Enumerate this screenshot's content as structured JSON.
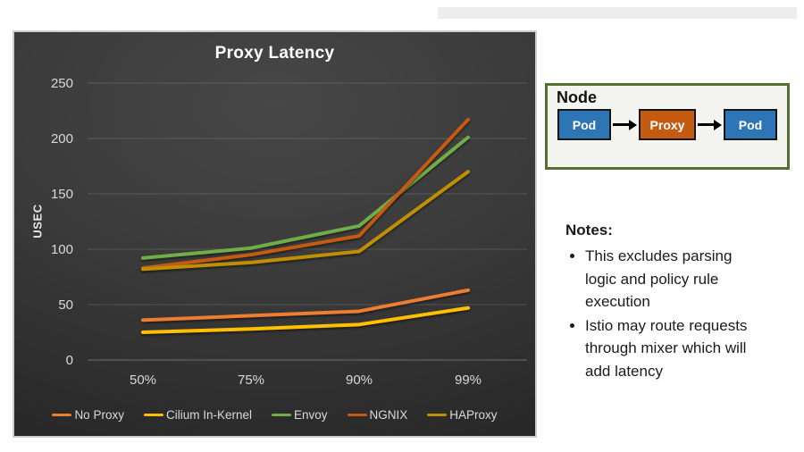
{
  "chart_data": {
    "type": "line",
    "title": "Proxy Latency",
    "ylabel": "USEC",
    "xlabel": "",
    "categories": [
      "50%",
      "75%",
      "90%",
      "99%"
    ],
    "series": [
      {
        "name": "No Proxy",
        "color": "#ED7D31",
        "values": [
          36,
          40,
          44,
          63
        ]
      },
      {
        "name": "Cilium In-Kernel",
        "color": "#FFC000",
        "values": [
          25,
          28,
          32,
          47
        ]
      },
      {
        "name": "Envoy",
        "color": "#70AD47",
        "values": [
          92,
          101,
          121,
          201
        ]
      },
      {
        "name": "NGNIX",
        "color": "#C55A11",
        "values": [
          83,
          95,
          112,
          217
        ]
      },
      {
        "name": "HAProxy",
        "color": "#BF8F00",
        "values": [
          82,
          88,
          98,
          170
        ]
      }
    ],
    "ylim": [
      0,
      250
    ],
    "yticks": [
      0,
      50,
      100,
      150,
      200,
      250
    ],
    "grid": true,
    "legend_position": "bottom",
    "panel_background": "#3a3a3a",
    "tick_text_color": "#d9d9d9"
  },
  "node_diagram": {
    "title": "Node",
    "border_color": "#566F31",
    "boxes": [
      {
        "label": "Pod",
        "color": "#2E75B6"
      },
      {
        "label": "Proxy",
        "color": "#C55A11"
      },
      {
        "label": "Pod",
        "color": "#2E75B6"
      }
    ]
  },
  "notes": {
    "heading": "Notes:",
    "items": [
      "This excludes parsing logic and policy rule execution",
      "Istio may route requests through mixer which will add latency"
    ]
  }
}
